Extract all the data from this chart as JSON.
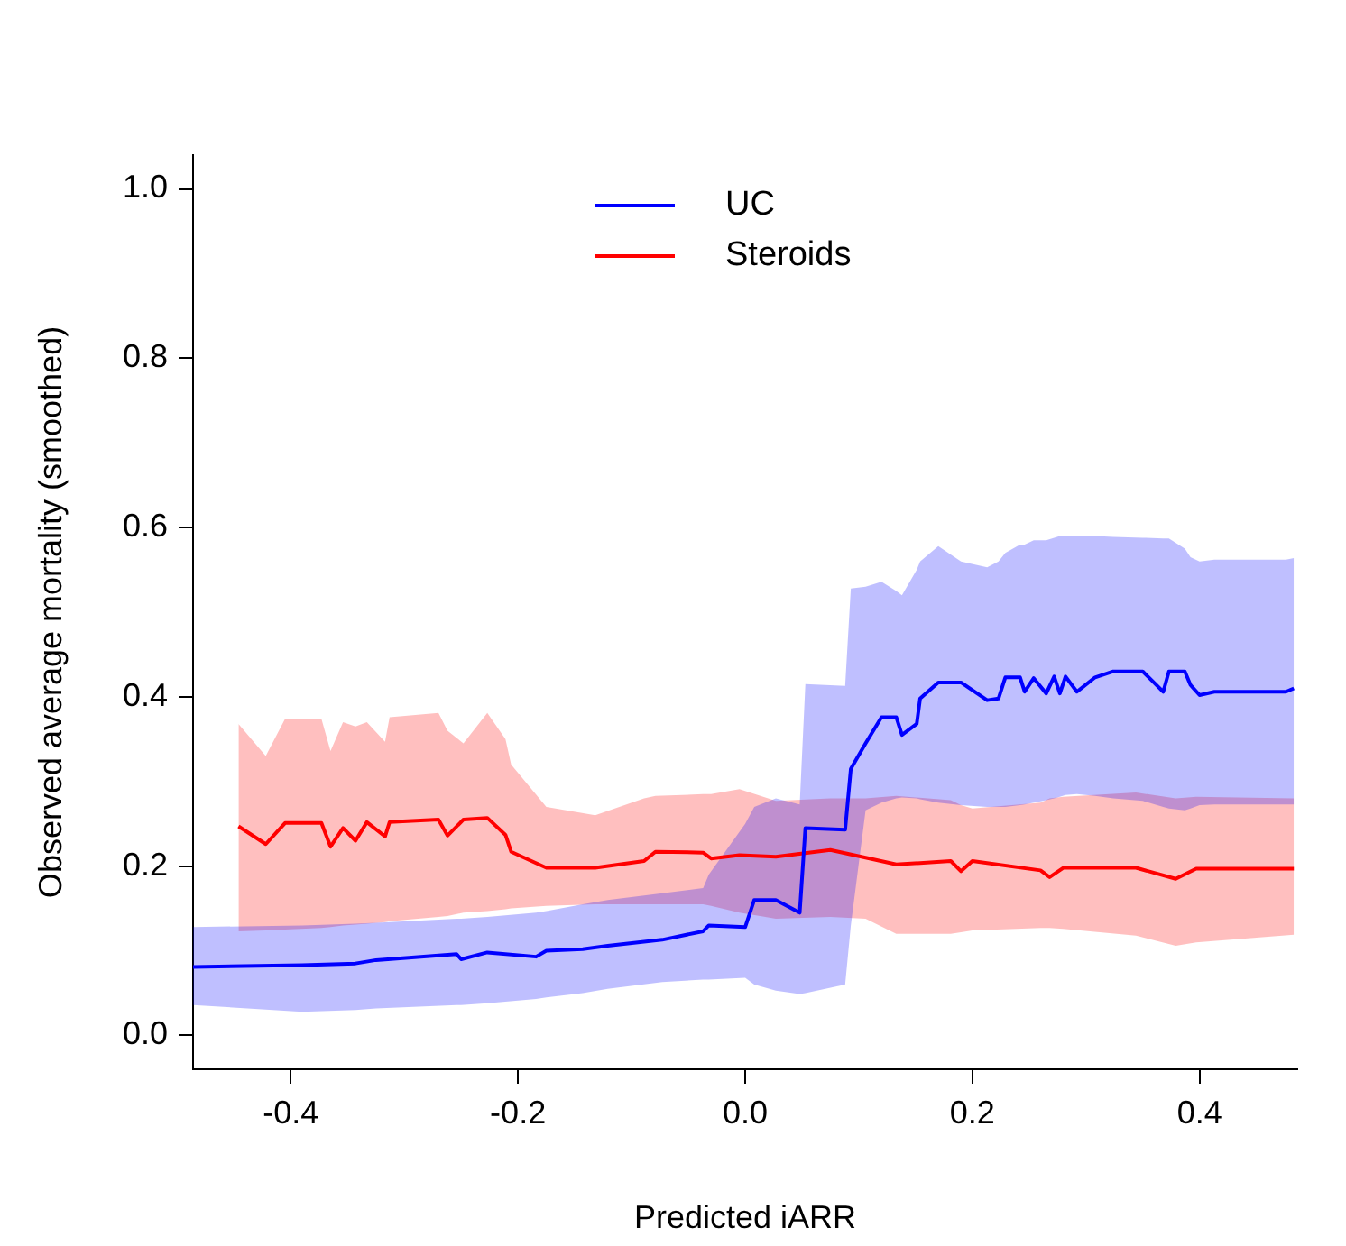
{
  "chart_data": {
    "type": "line",
    "xlabel": "Predicted iARR",
    "ylabel": "Observed average mortality (smoothed)",
    "xlim": [
      -0.486,
      0.486
    ],
    "ylim": [
      -0.04,
      1.04
    ],
    "xticks": [
      -0.4,
      -0.2,
      {
        "value": 0,
        "label": "0.0"
      },
      0.2,
      0.4
    ],
    "yticks": [
      {
        "value": 0,
        "label": "0.0"
      },
      0.2,
      0.4,
      0.6,
      0.8,
      {
        "value": 1,
        "label": "1.0"
      }
    ],
    "grid": false,
    "legend": "top",
    "marker": "none",
    "line_style": "solid",
    "series": [
      {
        "name": "UC",
        "color": "#0000ff",
        "x": [
          -0.486,
          -0.39,
          -0.343,
          -0.325,
          -0.254,
          -0.25,
          -0.227,
          -0.184,
          -0.175,
          -0.143,
          -0.121,
          -0.073,
          -0.037,
          -0.032,
          0.0,
          0.008,
          0.027,
          0.048,
          0.053,
          0.088,
          0.093,
          0.106,
          0.12,
          0.133,
          0.138,
          0.151,
          0.154,
          0.17,
          0.19,
          0.213,
          0.223,
          0.229,
          0.242,
          0.246,
          0.254,
          0.265,
          0.272,
          0.277,
          0.282,
          0.292,
          0.308,
          0.324,
          0.35,
          0.368,
          0.373,
          0.387,
          0.392,
          0.4,
          0.413,
          0.476,
          0.483
        ],
        "values": [
          0.081,
          0.083,
          0.085,
          0.089,
          0.096,
          0.09,
          0.098,
          0.093,
          0.1,
          0.102,
          0.106,
          0.113,
          0.123,
          0.13,
          0.128,
          0.16,
          0.16,
          0.145,
          0.245,
          0.243,
          0.315,
          0.345,
          0.376,
          0.376,
          0.355,
          0.368,
          0.398,
          0.417,
          0.417,
          0.396,
          0.398,
          0.423,
          0.423,
          0.406,
          0.422,
          0.404,
          0.424,
          0.404,
          0.424,
          0.406,
          0.423,
          0.43,
          0.43,
          0.406,
          0.43,
          0.43,
          0.414,
          0.402,
          0.406,
          0.406,
          0.41
        ],
        "lower": [
          0.036,
          0.028,
          0.03,
          0.032,
          0.036,
          0.036,
          0.038,
          0.043,
          0.045,
          0.05,
          0.055,
          0.063,
          0.066,
          0.066,
          0.068,
          0.06,
          0.053,
          0.049,
          0.05,
          0.06,
          0.13,
          0.266,
          0.275,
          0.28,
          0.281,
          0.28,
          0.279,
          0.275,
          0.272,
          0.27,
          0.27,
          0.27,
          0.272,
          0.273,
          0.275,
          0.278,
          0.28,
          0.282,
          0.284,
          0.285,
          0.283,
          0.28,
          0.277,
          0.27,
          0.268,
          0.266,
          0.268,
          0.272,
          0.273,
          0.273,
          0.273
        ],
        "upper": [
          0.128,
          0.13,
          0.132,
          0.133,
          0.138,
          0.138,
          0.14,
          0.145,
          0.147,
          0.155,
          0.16,
          0.168,
          0.174,
          0.19,
          0.25,
          0.27,
          0.28,
          0.273,
          0.415,
          0.413,
          0.528,
          0.53,
          0.536,
          0.525,
          0.52,
          0.55,
          0.56,
          0.578,
          0.56,
          0.553,
          0.56,
          0.57,
          0.58,
          0.58,
          0.585,
          0.585,
          0.588,
          0.59,
          0.59,
          0.59,
          0.59,
          0.589,
          0.588,
          0.587,
          0.587,
          0.575,
          0.565,
          0.56,
          0.562,
          0.562,
          0.564
        ]
      },
      {
        "name": "Steroids",
        "color": "#ff0000",
        "x": [
          -0.446,
          -0.422,
          -0.405,
          -0.373,
          -0.365,
          -0.354,
          -0.343,
          -0.333,
          -0.317,
          -0.313,
          -0.27,
          -0.262,
          -0.248,
          -0.227,
          -0.211,
          -0.206,
          -0.175,
          -0.132,
          -0.089,
          -0.079,
          -0.037,
          -0.03,
          -0.005,
          0.027,
          0.075,
          0.106,
          0.133,
          0.181,
          0.19,
          0.2,
          0.26,
          0.268,
          0.28,
          0.344,
          0.379,
          0.397,
          0.483
        ],
        "values": [
          0.247,
          0.226,
          0.251,
          0.251,
          0.223,
          0.245,
          0.23,
          0.252,
          0.235,
          0.252,
          0.255,
          0.236,
          0.255,
          0.257,
          0.237,
          0.217,
          0.198,
          0.198,
          0.206,
          0.217,
          0.216,
          0.209,
          0.213,
          0.211,
          0.219,
          0.21,
          0.202,
          0.206,
          0.194,
          0.206,
          0.195,
          0.187,
          0.198,
          0.198,
          0.185,
          0.197,
          0.197
        ],
        "lower": [
          0.123,
          0.124,
          0.125,
          0.127,
          0.128,
          0.13,
          0.131,
          0.132,
          0.134,
          0.135,
          0.14,
          0.141,
          0.145,
          0.147,
          0.149,
          0.15,
          0.153,
          0.155,
          0.155,
          0.155,
          0.155,
          0.153,
          0.145,
          0.138,
          0.14,
          0.138,
          0.12,
          0.12,
          0.122,
          0.124,
          0.127,
          0.127,
          0.126,
          0.118,
          0.106,
          0.11,
          0.119
        ],
        "upper": [
          0.368,
          0.33,
          0.374,
          0.374,
          0.336,
          0.37,
          0.365,
          0.37,
          0.347,
          0.376,
          0.381,
          0.36,
          0.345,
          0.381,
          0.35,
          0.32,
          0.27,
          0.26,
          0.28,
          0.283,
          0.285,
          0.285,
          0.291,
          0.277,
          0.28,
          0.28,
          0.283,
          0.278,
          0.272,
          0.268,
          0.275,
          0.28,
          0.282,
          0.287,
          0.28,
          0.282,
          0.28
        ]
      }
    ]
  }
}
